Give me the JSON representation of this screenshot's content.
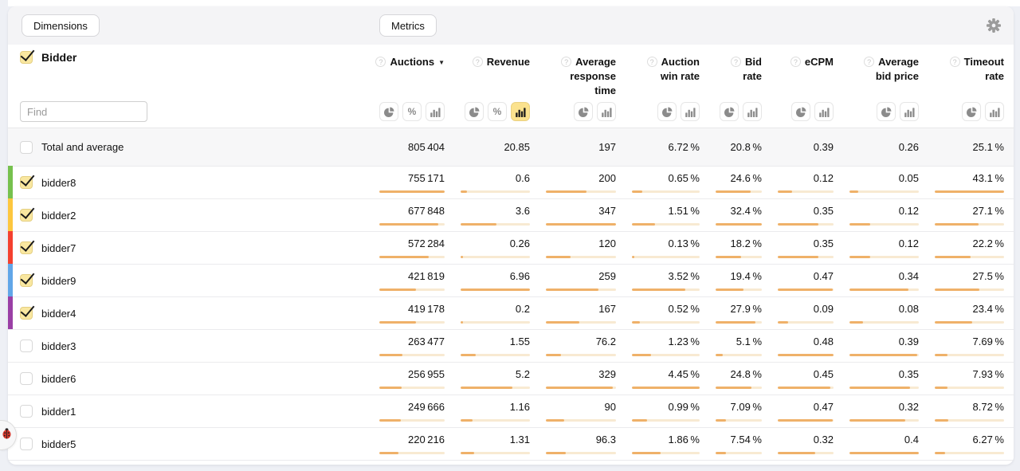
{
  "page_background": "#EEF0F5",
  "toolbar": {
    "dimensions_label": "Dimensions",
    "metrics_label": "Metrics",
    "settings_icon": "gear-icon"
  },
  "dimensions_panel": {
    "title": "Bidder",
    "title_checked": true,
    "find_placeholder": "Find"
  },
  "columns": [
    {
      "lines": [
        "Auctions"
      ],
      "sorted": "desc",
      "help_icon": "question-circle-icon",
      "toggles": [
        {
          "type": "pie",
          "active": false
        },
        {
          "type": "percent",
          "active": false
        },
        {
          "type": "bars",
          "active": false
        }
      ]
    },
    {
      "lines": [
        "Revenue"
      ],
      "help_icon": "question-circle-icon",
      "toggles": [
        {
          "type": "pie",
          "active": false
        },
        {
          "type": "percent",
          "active": false
        },
        {
          "type": "bars",
          "active": true
        }
      ]
    },
    {
      "lines": [
        "Average",
        "response",
        "time"
      ],
      "help_icon": "question-circle-icon",
      "toggles": [
        {
          "type": "pie",
          "active": false
        },
        {
          "type": "bars",
          "active": false
        }
      ]
    },
    {
      "lines": [
        "Auction",
        "win rate"
      ],
      "help_icon": "question-circle-icon",
      "toggles": [
        {
          "type": "pie",
          "active": false
        },
        {
          "type": "bars",
          "active": false
        }
      ]
    },
    {
      "lines": [
        "Bid",
        "rate"
      ],
      "help_icon": "question-circle-icon",
      "toggles": [
        {
          "type": "pie",
          "active": false
        },
        {
          "type": "bars",
          "active": false
        }
      ]
    },
    {
      "lines": [
        "eCPM"
      ],
      "help_icon": "question-circle-icon",
      "toggles": [
        {
          "type": "pie",
          "active": false
        },
        {
          "type": "bars",
          "active": false
        }
      ]
    },
    {
      "lines": [
        "Average",
        "bid price"
      ],
      "help_icon": "question-circle-icon",
      "toggles": [
        {
          "type": "pie",
          "active": false
        },
        {
          "type": "bars",
          "active": false
        }
      ]
    },
    {
      "lines": [
        "Timeout",
        "rate"
      ],
      "help_icon": "question-circle-icon",
      "toggles": [
        {
          "type": "pie",
          "active": false
        },
        {
          "type": "bars",
          "active": false
        }
      ]
    }
  ],
  "total_row": {
    "label": "Total and average",
    "checked": false,
    "display": [
      "805 404",
      "20.85",
      "197",
      "6.72 %",
      "20.8 %",
      "0.39",
      "0.26",
      "25.1 %"
    ]
  },
  "rows": [
    {
      "label": "bidder8",
      "checked": true,
      "stripe_color": "#76C14E",
      "display": [
        "755 171",
        "0.6",
        "200",
        "0.65 %",
        "24.6 %",
        "0.12",
        "0.05",
        "43.1 %"
      ],
      "values": [
        755171,
        0.6,
        200,
        0.65,
        24.6,
        0.12,
        0.05,
        43.1
      ]
    },
    {
      "label": "bidder2",
      "checked": true,
      "stripe_color": "#FDC73F",
      "display": [
        "677 848",
        "3.6",
        "347",
        "1.51 %",
        "32.4 %",
        "0.35",
        "0.12",
        "27.1 %"
      ],
      "values": [
        677848,
        3.6,
        347,
        1.51,
        32.4,
        0.35,
        0.12,
        27.1
      ]
    },
    {
      "label": "bidder7",
      "checked": true,
      "stripe_color": "#F4402F",
      "display": [
        "572 284",
        "0.26",
        "120",
        "0.13 %",
        "18.2 %",
        "0.35",
        "0.12",
        "22.2 %"
      ],
      "values": [
        572284,
        0.26,
        120,
        0.13,
        18.2,
        0.35,
        0.12,
        22.2
      ]
    },
    {
      "label": "bidder9",
      "checked": true,
      "stripe_color": "#61A6E8",
      "display": [
        "421 819",
        "6.96",
        "259",
        "3.52 %",
        "19.4 %",
        "0.47",
        "0.34",
        "27.5 %"
      ],
      "values": [
        421819,
        6.96,
        259,
        3.52,
        19.4,
        0.47,
        0.34,
        27.5
      ]
    },
    {
      "label": "bidder4",
      "checked": true,
      "stripe_color": "#9A3FA5",
      "display": [
        "419 178",
        "0.2",
        "167",
        "0.52 %",
        "27.9 %",
        "0.09",
        "0.08",
        "23.4 %"
      ],
      "values": [
        419178,
        0.2,
        167,
        0.52,
        27.9,
        0.09,
        0.08,
        23.4
      ]
    },
    {
      "label": "bidder3",
      "checked": false,
      "stripe_color": null,
      "display": [
        "263 477",
        "1.55",
        "76.2",
        "1.23 %",
        "5.1 %",
        "0.48",
        "0.39",
        "7.69 %"
      ],
      "values": [
        263477,
        1.55,
        76.2,
        1.23,
        5.1,
        0.48,
        0.39,
        7.69
      ]
    },
    {
      "label": "bidder6",
      "checked": false,
      "stripe_color": null,
      "display": [
        "256 955",
        "5.2",
        "329",
        "4.45 %",
        "24.8 %",
        "0.45",
        "0.35",
        "7.93 %"
      ],
      "values": [
        256955,
        5.2,
        329,
        4.45,
        24.8,
        0.45,
        0.35,
        7.93
      ]
    },
    {
      "label": "bidder1",
      "checked": false,
      "stripe_color": null,
      "display": [
        "249 666",
        "1.16",
        "90",
        "0.99 %",
        "7.09 %",
        "0.47",
        "0.32",
        "8.72 %"
      ],
      "values": [
        249666,
        1.16,
        90,
        0.99,
        7.09,
        0.47,
        0.32,
        8.72
      ]
    },
    {
      "label": "bidder5",
      "checked": false,
      "stripe_color": null,
      "display": [
        "220 216",
        "1.31",
        "96.3",
        "1.86 %",
        "7.54 %",
        "0.32",
        "0.4",
        "6.27 %"
      ],
      "values": [
        220216,
        1.31,
        96.3,
        1.86,
        7.54,
        0.32,
        0.4,
        6.27
      ]
    }
  ],
  "bar_colors": {
    "fill": "#EFB169",
    "track": "#F8EAD2"
  },
  "accent_colors": {
    "active_toggle_bg": "#FBE28E",
    "checkbox_checked_bg": "#F9E7A0",
    "total_row_bg": "#F7F7F8"
  },
  "bug_button": {
    "icon": "ladybug-icon"
  }
}
